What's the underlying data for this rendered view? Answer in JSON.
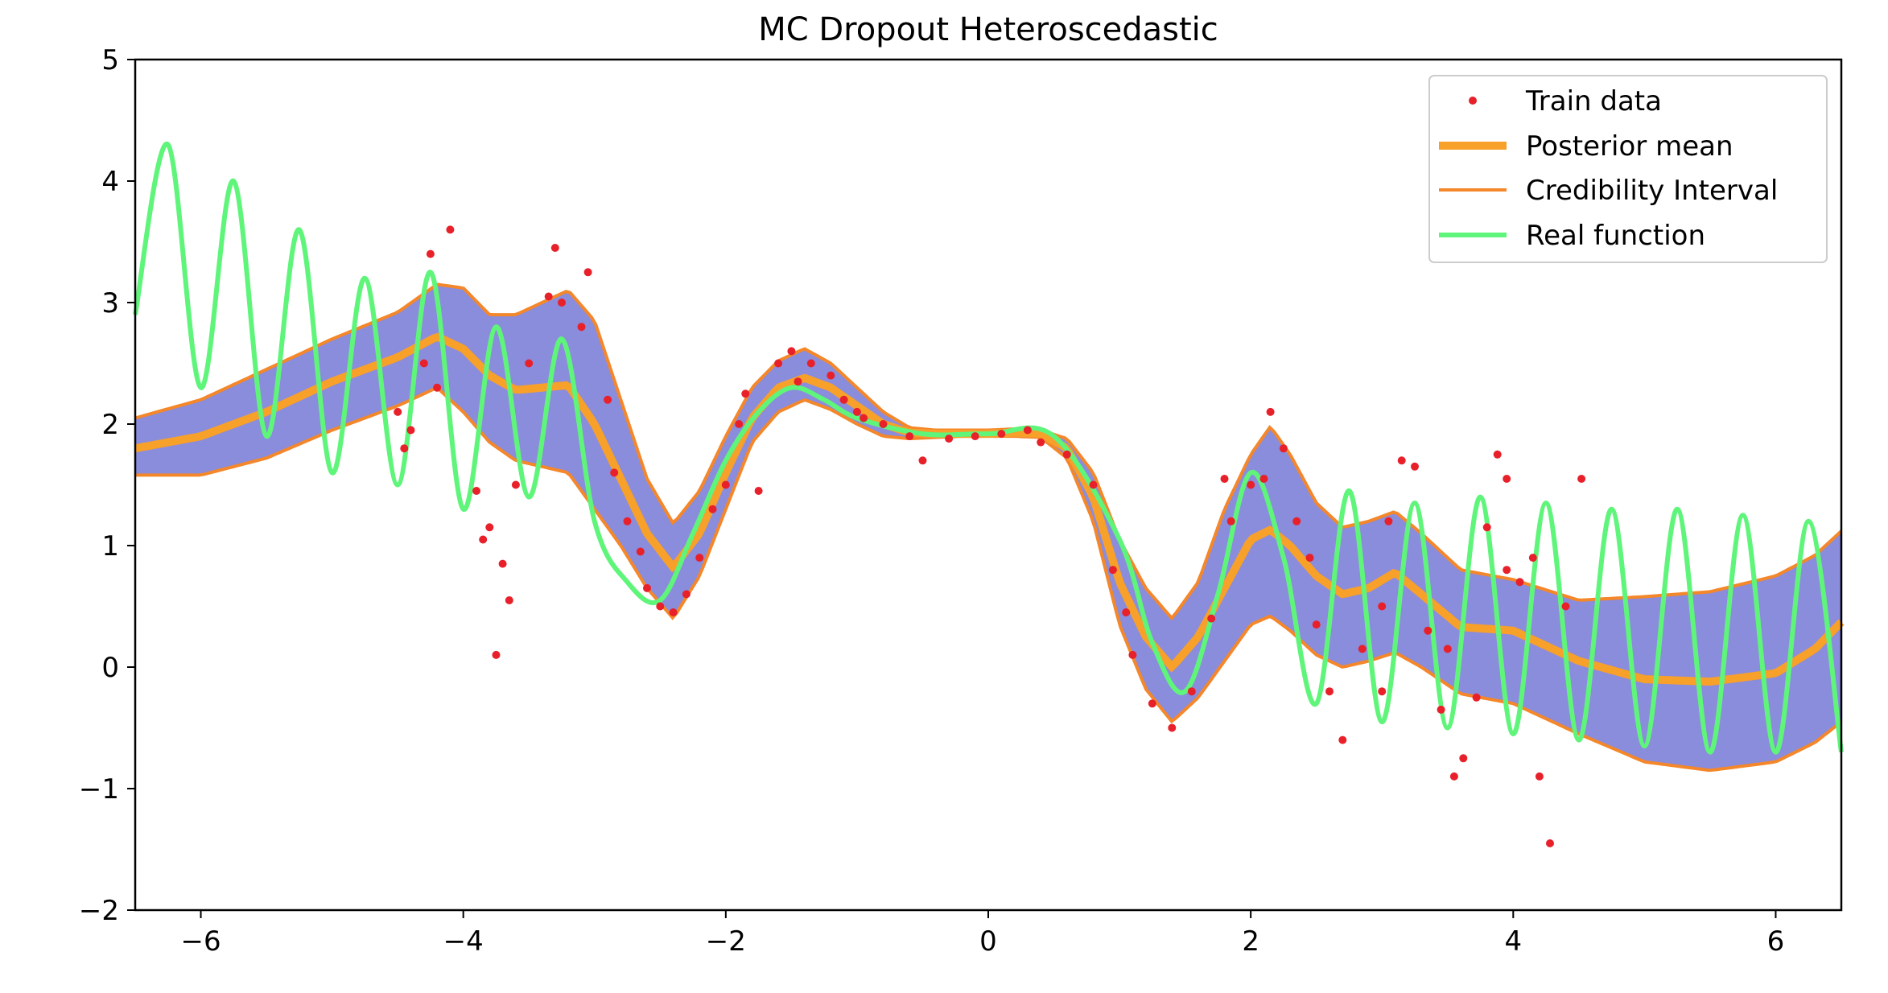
{
  "chart_data": {
    "type": "line",
    "title": "MC Dropout Heteroscedastic",
    "xlabel": "",
    "ylabel": "",
    "xlim": [
      -6.5,
      6.5
    ],
    "ylim": [
      -2,
      5
    ],
    "x_ticks": [
      -6,
      -4,
      -2,
      0,
      2,
      4,
      6
    ],
    "x_tick_labels": [
      "−6",
      "−4",
      "−2",
      "0",
      "2",
      "4",
      "6"
    ],
    "y_ticks": [
      -2,
      -1,
      0,
      1,
      2,
      3,
      4,
      5
    ],
    "y_tick_labels": [
      "−2",
      "−1",
      "0",
      "1",
      "2",
      "3",
      "4",
      "5"
    ],
    "grid": false,
    "legend_position": "top-right",
    "legend": [
      "Train data",
      "Posterior mean",
      "Credibility Interval",
      "Real function"
    ],
    "colors": {
      "train": "#e8202a",
      "mean": "#f7a02a",
      "interval": "#f4872a",
      "real": "#5ef57a",
      "band": "#7d7fd8"
    },
    "series": [
      {
        "name": "Posterior mean",
        "x": [
          -6.5,
          -6.0,
          -5.5,
          -5.0,
          -4.5,
          -4.2,
          -4.0,
          -3.8,
          -3.6,
          -3.2,
          -3.0,
          -2.8,
          -2.6,
          -2.4,
          -2.2,
          -2.0,
          -1.8,
          -1.6,
          -1.4,
          -1.2,
          -1.0,
          -0.8,
          -0.6,
          -0.4,
          -0.2,
          0.0,
          0.2,
          0.4,
          0.6,
          0.8,
          1.0,
          1.2,
          1.4,
          1.6,
          1.8,
          2.0,
          2.15,
          2.3,
          2.5,
          2.7,
          2.9,
          3.1,
          3.3,
          3.6,
          4.0,
          4.5,
          5.0,
          5.5,
          6.0,
          6.3,
          6.5
        ],
        "y": [
          1.8,
          1.9,
          2.1,
          2.35,
          2.55,
          2.72,
          2.62,
          2.4,
          2.28,
          2.32,
          2.0,
          1.55,
          1.1,
          0.82,
          1.1,
          1.6,
          2.05,
          2.3,
          2.38,
          2.3,
          2.15,
          2.0,
          1.93,
          1.92,
          1.92,
          1.92,
          1.93,
          1.92,
          1.8,
          1.4,
          0.7,
          0.25,
          0.0,
          0.25,
          0.65,
          1.05,
          1.13,
          1.0,
          0.75,
          0.6,
          0.65,
          0.78,
          0.6,
          0.33,
          0.3,
          0.05,
          -0.1,
          -0.12,
          -0.05,
          0.15,
          0.37
        ]
      },
      {
        "name": "Credibility Interval",
        "x": [
          -6.5,
          -6.0,
          -5.5,
          -5.0,
          -4.5,
          -4.2,
          -4.0,
          -3.8,
          -3.6,
          -3.2,
          -3.0,
          -2.8,
          -2.6,
          -2.4,
          -2.2,
          -2.0,
          -1.8,
          -1.6,
          -1.4,
          -1.2,
          -1.0,
          -0.8,
          -0.6,
          -0.4,
          -0.2,
          0.0,
          0.2,
          0.4,
          0.6,
          0.8,
          1.0,
          1.2,
          1.4,
          1.6,
          1.8,
          2.0,
          2.15,
          2.3,
          2.5,
          2.7,
          2.9,
          3.1,
          3.3,
          3.6,
          4.0,
          4.5,
          5.0,
          5.5,
          6.0,
          6.3,
          6.5
        ],
        "y": [
          2.05,
          2.2,
          2.45,
          2.7,
          2.92,
          3.15,
          3.12,
          2.9,
          2.9,
          3.1,
          2.85,
          2.2,
          1.55,
          1.18,
          1.45,
          1.9,
          2.3,
          2.52,
          2.62,
          2.5,
          2.3,
          2.1,
          1.97,
          1.95,
          1.95,
          1.95,
          1.96,
          1.95,
          1.88,
          1.6,
          1.05,
          0.65,
          0.4,
          0.7,
          1.3,
          1.75,
          1.98,
          1.75,
          1.35,
          1.15,
          1.2,
          1.28,
          1.1,
          0.8,
          0.72,
          0.55,
          0.58,
          0.62,
          0.75,
          0.92,
          1.12
        ]
      },
      {
        "name": "",
        "x": [
          -6.5,
          -6.0,
          -5.5,
          -5.0,
          -4.5,
          -4.2,
          -4.0,
          -3.8,
          -3.6,
          -3.2,
          -3.0,
          -2.8,
          -2.6,
          -2.4,
          -2.2,
          -2.0,
          -1.8,
          -1.6,
          -1.4,
          -1.2,
          -1.0,
          -0.8,
          -0.6,
          -0.4,
          -0.2,
          0.0,
          0.2,
          0.4,
          0.6,
          0.8,
          1.0,
          1.2,
          1.4,
          1.6,
          1.8,
          2.0,
          2.15,
          2.3,
          2.5,
          2.7,
          2.9,
          3.1,
          3.3,
          3.6,
          4.0,
          4.5,
          5.0,
          5.5,
          6.0,
          6.3,
          6.5
        ],
        "y": [
          1.58,
          1.58,
          1.72,
          1.95,
          2.15,
          2.3,
          2.1,
          1.85,
          1.7,
          1.6,
          1.3,
          1.0,
          0.65,
          0.4,
          0.75,
          1.3,
          1.85,
          2.1,
          2.2,
          2.12,
          2.0,
          1.9,
          1.88,
          1.89,
          1.9,
          1.9,
          1.9,
          1.89,
          1.72,
          1.2,
          0.35,
          -0.18,
          -0.45,
          -0.25,
          0.05,
          0.35,
          0.42,
          0.3,
          0.1,
          0.0,
          0.05,
          0.12,
          0.0,
          -0.22,
          -0.3,
          -0.55,
          -0.78,
          -0.85,
          -0.78,
          -0.62,
          -0.45
        ]
      },
      {
        "name": "Real function",
        "formula": "visual reconstruction",
        "x": [
          -6.5,
          -6.25,
          -6.0,
          -5.75,
          -5.5,
          -5.25,
          -5.0,
          -4.75,
          -4.5,
          -4.25,
          -4.0,
          -3.75,
          -3.5,
          -3.25,
          -3.0,
          -2.75,
          -2.5,
          -2.25,
          -2.0,
          -1.75,
          -1.5,
          -1.25,
          -1.0,
          -0.5,
          0.0,
          0.5,
          1.0,
          1.25,
          1.5,
          1.75,
          2.0,
          2.25,
          2.5,
          2.75,
          3.0,
          3.25,
          3.5,
          3.75,
          4.0,
          4.25,
          4.5,
          4.75,
          5.0,
          5.25,
          5.5,
          5.75,
          6.0,
          6.25,
          6.5
        ],
        "y": [
          2.9,
          4.3,
          2.3,
          4.0,
          1.9,
          3.6,
          1.6,
          3.2,
          1.5,
          3.25,
          1.3,
          2.8,
          1.4,
          2.7,
          1.2,
          0.7,
          0.55,
          1.1,
          1.7,
          2.1,
          2.3,
          2.2,
          2.05,
          1.92,
          1.92,
          1.9,
          1.05,
          0.2,
          -0.2,
          0.6,
          1.6,
          0.9,
          -0.3,
          1.45,
          -0.45,
          1.35,
          -0.5,
          1.4,
          -0.55,
          1.35,
          -0.6,
          1.3,
          -0.65,
          1.3,
          -0.7,
          1.25,
          -0.7,
          1.2,
          -0.7
        ]
      }
    ],
    "train_points": [
      [
        -4.1,
        3.6
      ],
      [
        -4.25,
        3.4
      ],
      [
        -4.3,
        2.5
      ],
      [
        -4.4,
        1.95
      ],
      [
        -4.5,
        2.1
      ],
      [
        -4.45,
        1.8
      ],
      [
        -3.9,
        1.45
      ],
      [
        -3.85,
        1.05
      ],
      [
        -3.8,
        1.15
      ],
      [
        -3.7,
        0.85
      ],
      [
        -3.65,
        0.55
      ],
      [
        -3.75,
        0.1
      ],
      [
        -3.6,
        1.5
      ],
      [
        -3.5,
        2.5
      ],
      [
        -3.3,
        3.45
      ],
      [
        -3.25,
        3.0
      ],
      [
        -3.05,
        3.25
      ],
      [
        -3.1,
        2.8
      ],
      [
        -2.9,
        2.2
      ],
      [
        -2.85,
        1.6
      ],
      [
        -2.75,
        1.2
      ],
      [
        -2.6,
        0.65
      ],
      [
        -2.5,
        0.5
      ],
      [
        -2.4,
        0.45
      ],
      [
        -2.3,
        0.6
      ],
      [
        -2.2,
        0.9
      ],
      [
        -2.1,
        1.3
      ],
      [
        -2.0,
        1.5
      ],
      [
        -1.9,
        2.0
      ],
      [
        -1.85,
        2.25
      ],
      [
        -1.75,
        1.45
      ],
      [
        -1.6,
        2.5
      ],
      [
        -1.5,
        2.6
      ],
      [
        -1.35,
        2.5
      ],
      [
        -1.2,
        2.4
      ],
      [
        -1.1,
        2.2
      ],
      [
        -1.0,
        2.1
      ],
      [
        -0.8,
        2.0
      ],
      [
        -0.6,
        1.9
      ],
      [
        -0.5,
        1.7
      ],
      [
        -0.3,
        1.88
      ],
      [
        -0.1,
        1.9
      ],
      [
        0.1,
        1.92
      ],
      [
        0.3,
        1.95
      ],
      [
        0.4,
        1.85
      ],
      [
        0.6,
        1.75
      ],
      [
        0.8,
        1.5
      ],
      [
        0.95,
        0.8
      ],
      [
        1.1,
        0.1
      ],
      [
        1.25,
        -0.3
      ],
      [
        1.4,
        -0.5
      ],
      [
        1.55,
        -0.2
      ],
      [
        1.7,
        0.4
      ],
      [
        1.85,
        1.2
      ],
      [
        2.0,
        1.5
      ],
      [
        2.1,
        1.55
      ],
      [
        2.15,
        2.1
      ],
      [
        2.25,
        1.8
      ],
      [
        2.35,
        1.2
      ],
      [
        2.5,
        0.35
      ],
      [
        2.6,
        -0.2
      ],
      [
        2.7,
        -0.6
      ],
      [
        2.85,
        0.15
      ],
      [
        3.0,
        0.5
      ],
      [
        3.05,
        1.2
      ],
      [
        3.15,
        1.7
      ],
      [
        3.25,
        1.65
      ],
      [
        3.35,
        0.3
      ],
      [
        3.45,
        -0.35
      ],
      [
        3.55,
        -0.9
      ],
      [
        3.62,
        -0.75
      ],
      [
        3.72,
        -0.25
      ],
      [
        3.8,
        1.15
      ],
      [
        3.88,
        1.75
      ],
      [
        3.95,
        1.55
      ],
      [
        4.05,
        0.7
      ],
      [
        4.15,
        0.9
      ],
      [
        4.2,
        -0.9
      ],
      [
        4.28,
        -1.45
      ],
      [
        4.4,
        0.5
      ],
      [
        4.52,
        1.55
      ],
      [
        3.0,
        -0.2
      ],
      [
        1.8,
        1.55
      ],
      [
        -1.45,
        2.35
      ],
      [
        -4.2,
        2.3
      ],
      [
        -3.35,
        3.05
      ],
      [
        2.45,
        0.9
      ],
      [
        3.5,
        0.15
      ],
      [
        3.95,
        0.8
      ],
      [
        -0.95,
        2.05
      ],
      [
        1.05,
        0.45
      ],
      [
        -2.65,
        0.95
      ]
    ]
  }
}
